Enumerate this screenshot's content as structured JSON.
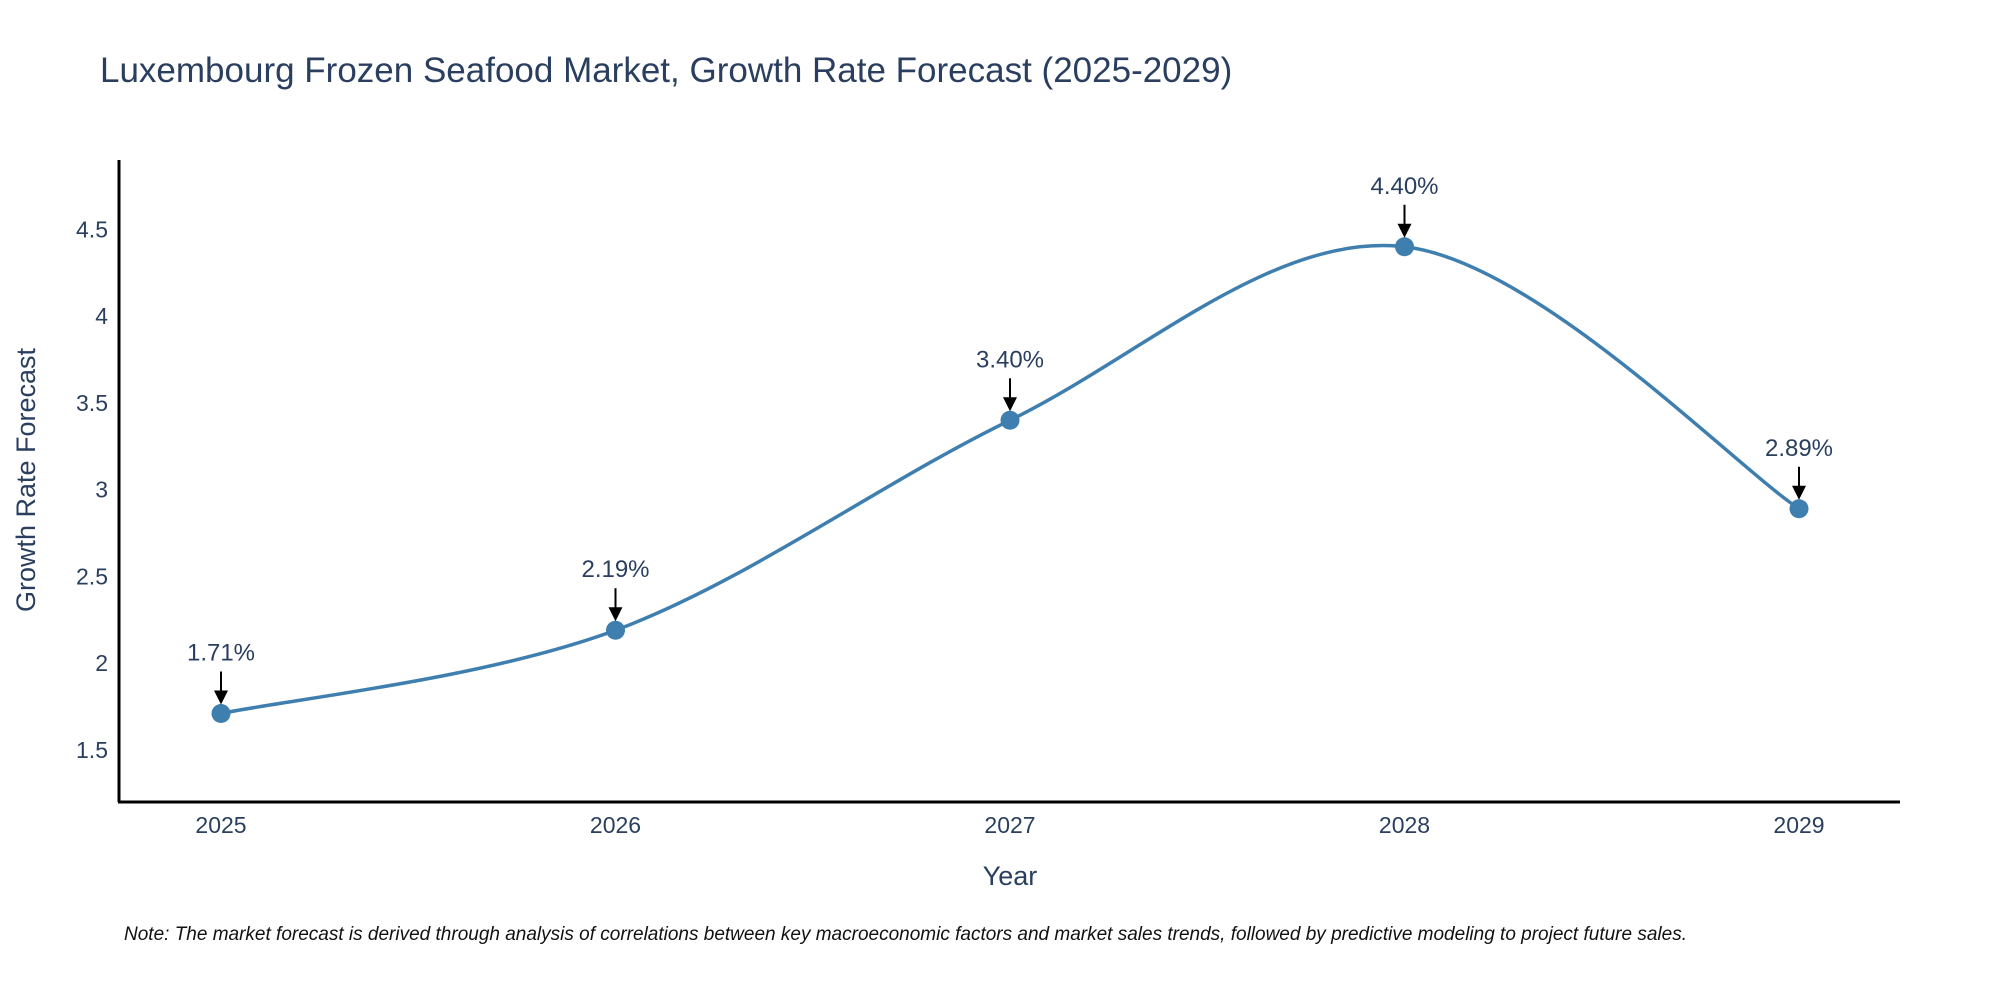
{
  "chart_data": {
    "type": "line",
    "title": "Luxembourg Frozen Seafood Market, Growth Rate Forecast (2025-2029)",
    "xlabel": "Year",
    "ylabel": "Growth Rate Forecast",
    "categories": [
      "2025",
      "2026",
      "2027",
      "2028",
      "2029"
    ],
    "values": [
      1.71,
      2.19,
      3.4,
      4.4,
      2.89
    ],
    "data_labels": [
      "1.71%",
      "2.19%",
      "3.40%",
      "4.40%",
      "2.89%"
    ],
    "yticks": [
      1.5,
      2,
      2.5,
      3,
      3.5,
      4,
      4.5
    ],
    "ytick_labels": [
      "1.5",
      "2",
      "2.5",
      "3",
      "3.5",
      "4",
      "4.5"
    ],
    "ylim": [
      1.2,
      4.9
    ],
    "grid": false,
    "line_shape": "spline",
    "series_color": "#3f7faf",
    "note": "Note: The market forecast is derived through analysis of correlations between key macroeconomic factors and market sales trends, followed by predictive modeling to project future sales."
  }
}
